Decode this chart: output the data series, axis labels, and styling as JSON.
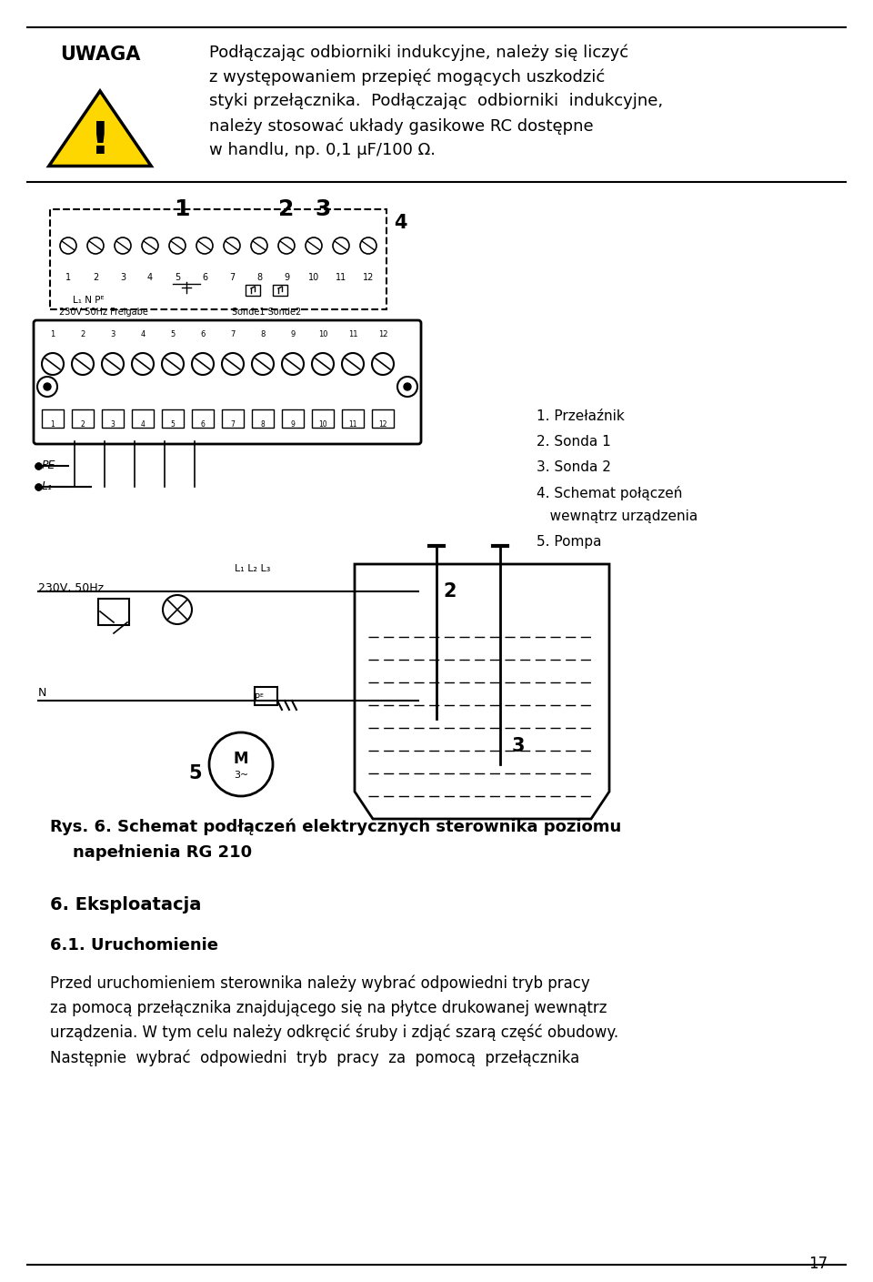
{
  "bg_color": "#ffffff",
  "page_number": "17",
  "uwaga_title": "UWAGA",
  "uwaga_text_line1": "Podłączając odbiorniki indukcyjne, należy się liczyć",
  "uwaga_text_line2": "z występowaniem przepięć mogących uszkodzić",
  "uwaga_text_line3": "styki przełącznika.  Podłączając  odbiorniki  indukcyjne,",
  "uwaga_text_line4": "należy stosować układy gasikowe RC dostępne",
  "uwaga_text_line5": "w handlu, np. 0,1 μF/100 Ω.",
  "legend_1": "1. Przełaźnik",
  "legend_2": "2. Sonda 1",
  "legend_3": "3. Sonda 2",
  "legend_4a": "4. Schemat połączeń",
  "legend_4b": "   wewnątrz urządzenia",
  "legend_5": "5. Pompa",
  "fig_caption_1": "Rys. 6. Schemat podłączeń elektrycznych sterownika poziomu",
  "fig_caption_2": "    napełnienia RG 210",
  "section_title": "6. Eksploatacja",
  "subsection_title": "6.1. Uruchomienie",
  "body_text_line1": "Przed uruchomieniem sterownika należy wybrać odpowiedni tryb pracy",
  "body_text_line2": "za pomocą przełącznika znajdującego się na płytce drukowanej wewnątrz",
  "body_text_line3": "urządzenia. W tym celu należy odkręcić śruby i zdjąć szarą część obudowy.",
  "body_text_line4": "Następnie  wybrać  odpowiedni  tryb  pracy  za  pomocą  przełącznika"
}
